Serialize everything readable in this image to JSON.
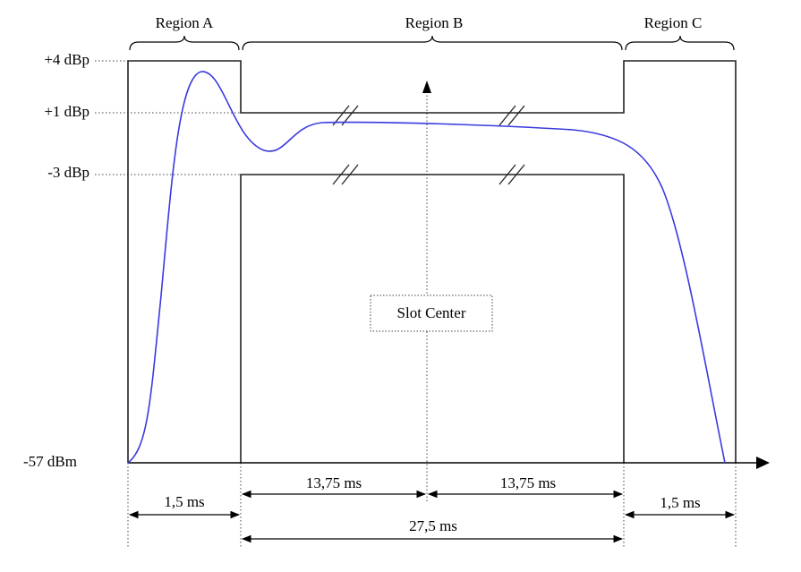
{
  "regions": [
    "Region A",
    "Region B",
    "Region C"
  ],
  "levels": [
    "+4 dBp",
    "+1 dBp",
    "-3 dBp",
    "-57 dBm"
  ],
  "center_label": "Slot Center",
  "durations": {
    "region_a": "1,5 ms",
    "half_left": "13,75 ms",
    "half_right": "13,75 ms",
    "region_c": "1,5 ms",
    "region_b": "27,5 ms"
  }
}
